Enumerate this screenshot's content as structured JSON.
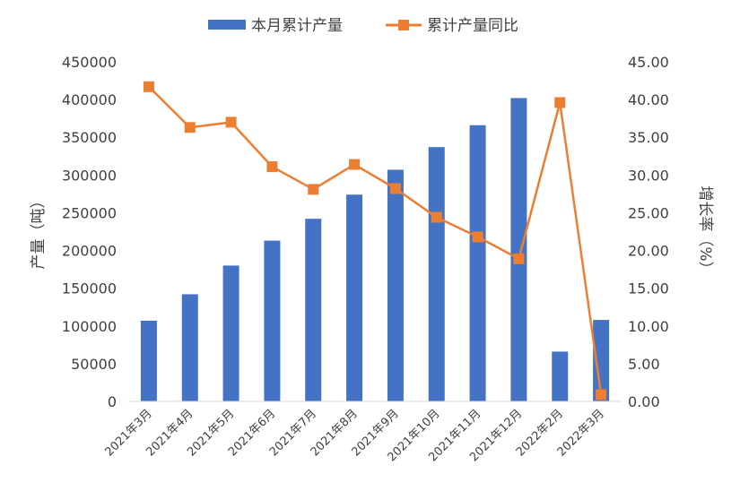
{
  "chart_data": {
    "type": "bar",
    "categories": [
      "2021年3月",
      "2021年4月",
      "2021年5月",
      "2021年6月",
      "2021年7月",
      "2021年8月",
      "2021年9月",
      "2021年10月",
      "2021年11月",
      "2021年12月",
      "2022年2月",
      "2022年3月"
    ],
    "series": [
      {
        "name": "本月累计产量",
        "type": "bar",
        "axis": "left",
        "color": "#4472C4",
        "values": [
          107000,
          142000,
          180000,
          213000,
          242000,
          274000,
          307000,
          337000,
          366000,
          402000,
          66000,
          108000
        ]
      },
      {
        "name": "累计产量同比",
        "type": "line",
        "axis": "right",
        "color": "#ED7D31",
        "marker": "square",
        "values": [
          41.7,
          36.3,
          37.0,
          31.1,
          28.1,
          31.4,
          28.2,
          24.4,
          21.8,
          18.9,
          39.6,
          0.9
        ]
      }
    ],
    "ylabel": "产量（吨）",
    "y2label": "增长率（%）",
    "ylim": [
      0,
      450000
    ],
    "y2lim": [
      0,
      45
    ],
    "yticks": [
      "0",
      "50000",
      "100000",
      "150000",
      "200000",
      "250000",
      "300000",
      "350000",
      "400000",
      "450000"
    ],
    "y2ticks": [
      "0.00",
      "5.00",
      "10.00",
      "15.00",
      "20.00",
      "25.00",
      "30.00",
      "35.00",
      "40.00",
      "45.00"
    ],
    "legend_position": "top",
    "grid": false
  }
}
